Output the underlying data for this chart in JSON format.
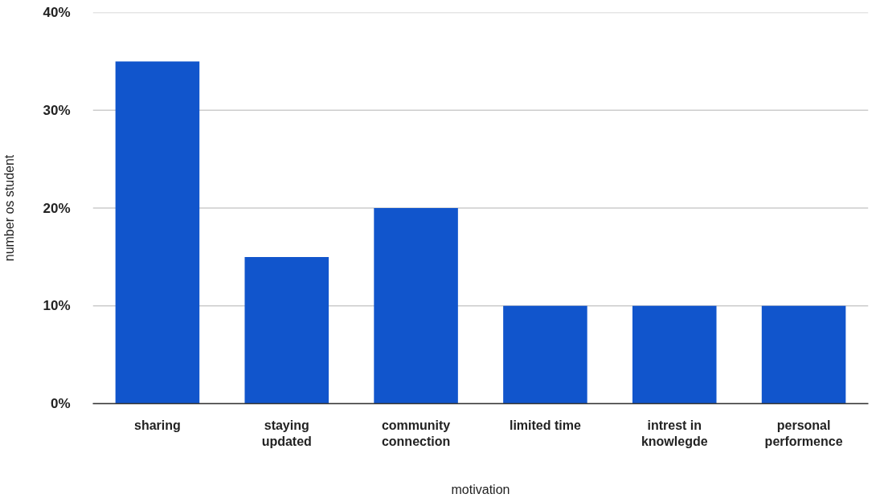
{
  "chart_data": {
    "type": "bar",
    "xlabel": "motivation",
    "ylabel": "number os student",
    "categories": [
      "sharing",
      "staying updated",
      "community connection",
      "limited time",
      "intrest in knowlegde",
      "personal performence"
    ],
    "values": [
      35,
      15,
      20,
      10,
      10,
      10
    ],
    "color": "#1155cc",
    "ylim": [
      0,
      40
    ],
    "yticks": [
      {
        "value": 0,
        "label": "0%"
      },
      {
        "value": 10,
        "label": "10%"
      },
      {
        "value": 20,
        "label": "20%"
      },
      {
        "value": 30,
        "label": "30%"
      },
      {
        "value": 40,
        "label": "40%"
      }
    ],
    "grid": "y"
  }
}
